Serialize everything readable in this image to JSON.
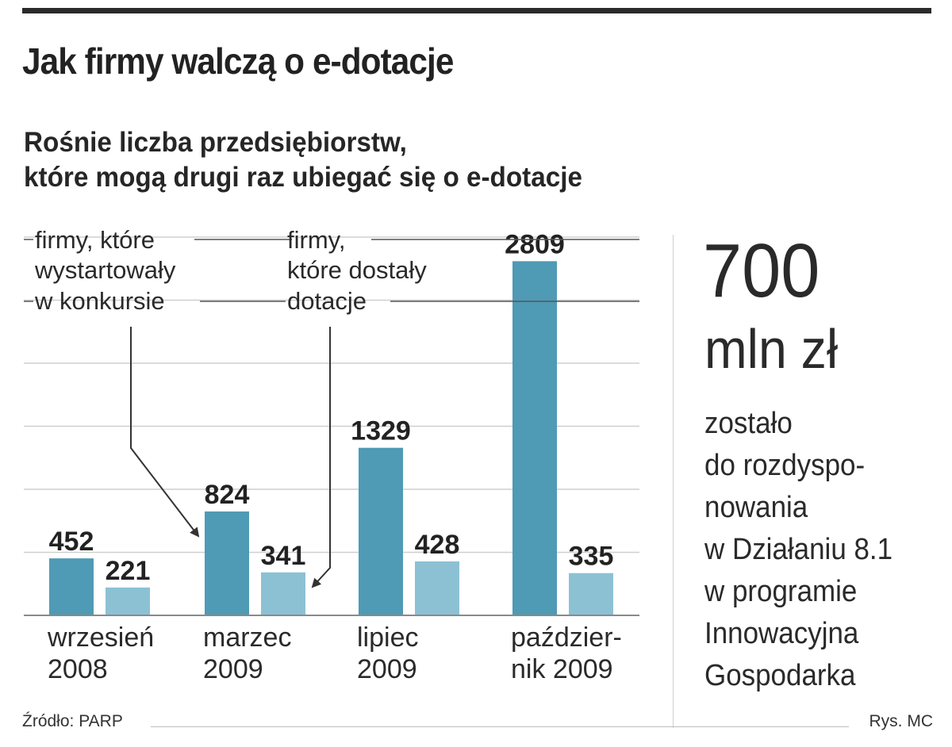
{
  "header": {
    "title": "Jak firmy walczą o e-dotacje",
    "subtitle_line1": "Rośnie liczba przedsiębiorstw,",
    "subtitle_line2": "które mogą drugi raz ubiegać się o e-dotacje"
  },
  "chart_data": {
    "type": "bar",
    "categories": [
      [
        "wrzesień",
        "2008"
      ],
      [
        "marzec",
        "2009"
      ],
      [
        "lipiec",
        "2009"
      ],
      [
        "paździer-",
        "nik 2009"
      ]
    ],
    "series": [
      {
        "label_lines": [
          "firmy, które",
          "wystartowały",
          "w konkursie"
        ],
        "color": "#4f9ab5",
        "values": [
          452,
          824,
          1329,
          2809
        ]
      },
      {
        "label_lines": [
          "firmy,",
          "które dostały",
          "dotacje"
        ],
        "color": "#8cc1d4",
        "values": [
          221,
          341,
          428,
          335
        ]
      }
    ],
    "ylim": [
      0,
      3000
    ],
    "grid": true
  },
  "aside": {
    "value": "700",
    "unit": "mln zł",
    "description_lines": [
      "zostało",
      "do rozdyspo-",
      "nowania",
      "w Działaniu 8.1",
      "w programie",
      "Innowacyjna",
      "Gospodarka"
    ]
  },
  "footer": {
    "source": "Źródło: PARP",
    "credit": "Rys. MC"
  }
}
